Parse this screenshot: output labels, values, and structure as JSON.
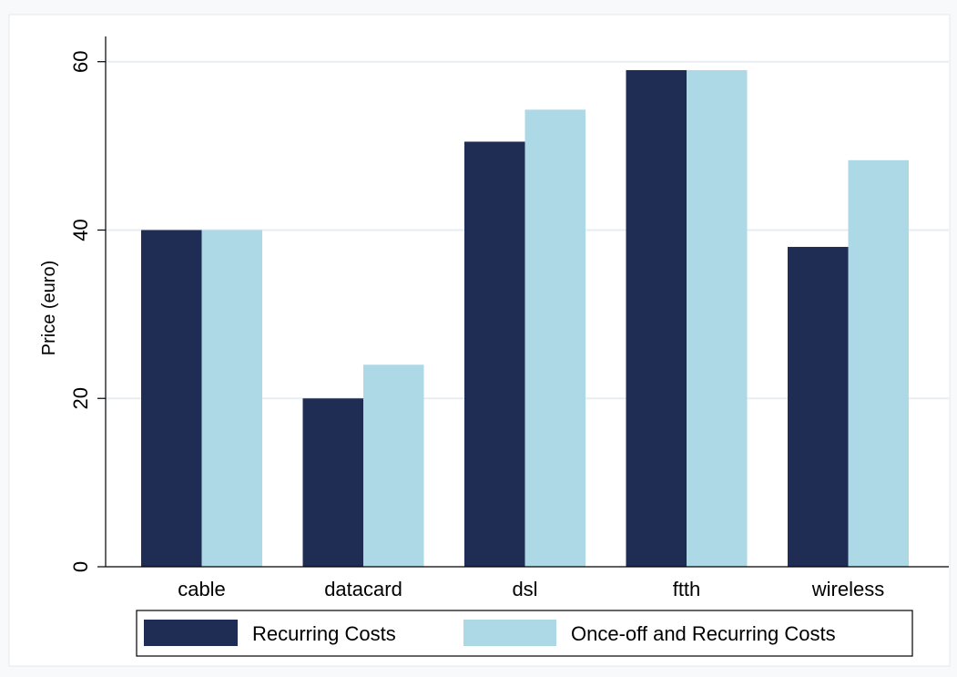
{
  "chart_data": {
    "type": "bar",
    "title": "",
    "xlabel": "",
    "ylabel": "Price (euro)",
    "categories": [
      "cable",
      "datacard",
      "dsl",
      "ftth",
      "wireless"
    ],
    "series": [
      {
        "name": "Recurring Costs",
        "color": "#1f2d54",
        "values": [
          40,
          20,
          50.5,
          59,
          38
        ]
      },
      {
        "name": "Once-off and Recurring Costs",
        "color": "#add8e6",
        "values": [
          40,
          24,
          54.3,
          59,
          48.3
        ]
      }
    ],
    "ylim": [
      0,
      63
    ],
    "yticks": [
      0,
      20,
      40,
      60
    ],
    "grid": true,
    "legend_position": "bottom"
  }
}
